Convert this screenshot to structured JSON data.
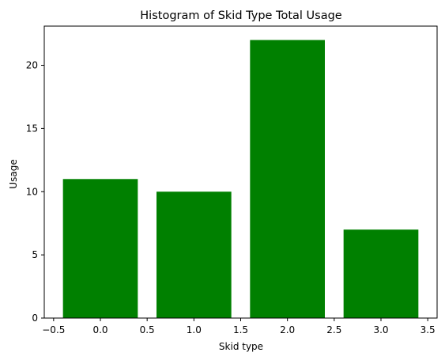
{
  "chart_data": {
    "type": "bar",
    "title": "Histogram of Skid Type Total Usage",
    "xlabel": "Skid type",
    "ylabel": "Usage",
    "x": [
      0,
      1,
      2,
      3
    ],
    "values": [
      11,
      10,
      22,
      7
    ],
    "bar_width": 0.8,
    "xlim": [
      -0.6,
      3.6
    ],
    "ylim": [
      0,
      23.1
    ],
    "xticks": [
      -0.5,
      0.0,
      0.5,
      1.0,
      1.5,
      2.0,
      2.5,
      3.0,
      3.5
    ],
    "xtick_labels": [
      "−0.5",
      "0.0",
      "0.5",
      "1.0",
      "1.5",
      "2.0",
      "2.5",
      "3.0",
      "3.5"
    ],
    "yticks": [
      0,
      5,
      10,
      15,
      20
    ],
    "ytick_labels": [
      "0",
      "5",
      "10",
      "15",
      "20"
    ],
    "bar_color": "#008000",
    "grid": false,
    "legend": "none"
  }
}
